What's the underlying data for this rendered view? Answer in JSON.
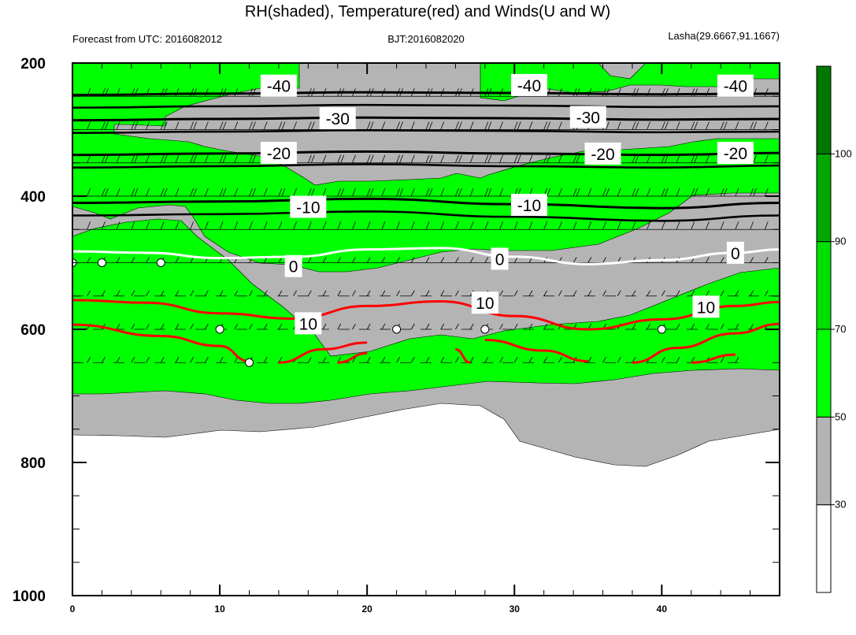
{
  "title": "RH(shaded), Temperature(red) and Winds(U and W)",
  "left_string": "Forecast from UTC: 2016082012",
  "center_string": "BJT:2016082020",
  "right_string": "Lasha(29.6667,91.1667)",
  "colors": {
    "rh_gray": "#b4b4b4",
    "rh_green_50": "#00ff00",
    "rh_green_70": "#00e000",
    "rh_green_90": "#00a800",
    "rh_green_100": "#007800",
    "temp_warm": "#ff0000",
    "temp_zero": "#ffffff",
    "temp_cold": "#000000"
  },
  "chart_data": {
    "type": "contour",
    "x": {
      "range": [
        0,
        48
      ],
      "ticks": [
        0,
        10,
        20,
        30,
        40
      ]
    },
    "y": {
      "range": [
        200,
        1000
      ],
      "ticks": [
        200,
        400,
        600,
        800,
        1000
      ],
      "reversed": true
    },
    "colorbar": {
      "levels": [
        30,
        50,
        70,
        90,
        100
      ],
      "colors": [
        "#ffffff",
        "#b4b4b4",
        "#00ff00",
        "#00e000",
        "#00a800",
        "#007800"
      ]
    },
    "temperature_contours": [
      {
        "level": -40,
        "label": "-40",
        "points": [
          [
            0,
            248
          ],
          [
            10,
            246
          ],
          [
            20,
            244
          ],
          [
            30,
            245
          ],
          [
            40,
            247
          ],
          [
            48,
            246
          ]
        ],
        "label_positions": [
          [
            14,
            234
          ],
          [
            31,
            233
          ],
          [
            45,
            234
          ]
        ]
      },
      {
        "level": -30,
        "label": "-30",
        "points": [
          [
            0,
            286
          ],
          [
            10,
            284
          ],
          [
            20,
            282
          ],
          [
            30,
            283
          ],
          [
            40,
            285
          ],
          [
            48,
            284
          ]
        ],
        "label_positions": [
          [
            18,
            283
          ],
          [
            35,
            281
          ]
        ]
      },
      {
        "level": -20,
        "label": "-20",
        "points": [
          [
            0,
            338
          ],
          [
            10,
            336
          ],
          [
            20,
            333
          ],
          [
            30,
            336
          ],
          [
            40,
            338
          ],
          [
            48,
            335
          ]
        ],
        "label_positions": [
          [
            14,
            335
          ],
          [
            36,
            336
          ],
          [
            45,
            335
          ]
        ]
      },
      {
        "level": -10,
        "label": "-10",
        "points": [
          [
            0,
            410
          ],
          [
            10,
            408
          ],
          [
            20,
            404
          ],
          [
            30,
            412
          ],
          [
            40,
            418
          ],
          [
            48,
            410
          ]
        ],
        "label_positions": [
          [
            16,
            416
          ],
          [
            31,
            413
          ]
        ]
      },
      {
        "level": 0,
        "label": "0",
        "points": [
          [
            0,
            483
          ],
          [
            5,
            485
          ],
          [
            10,
            493
          ],
          [
            15,
            491
          ],
          [
            20,
            480
          ],
          [
            25,
            478
          ],
          [
            30,
            491
          ],
          [
            35,
            502
          ],
          [
            40,
            496
          ],
          [
            45,
            485
          ],
          [
            48,
            480
          ]
        ],
        "label_positions": [
          [
            15,
            505
          ],
          [
            29,
            494
          ],
          [
            45,
            485
          ]
        ]
      },
      {
        "level": 10,
        "label": "10",
        "points": [
          [
            0,
            556
          ],
          [
            5,
            560
          ],
          [
            10,
            576
          ],
          [
            15,
            584
          ],
          [
            20,
            565
          ],
          [
            25,
            558
          ],
          [
            30,
            580
          ],
          [
            35,
            600
          ],
          [
            40,
            585
          ],
          [
            45,
            565
          ],
          [
            48,
            559
          ]
        ],
        "label_positions": [
          [
            16,
            591
          ],
          [
            28,
            560
          ],
          [
            43,
            566
          ]
        ]
      }
    ],
    "wind_levels_hPa": [
      200,
      250,
      300,
      350,
      400,
      450,
      500,
      550,
      600,
      650
    ],
    "calm_points": [
      [
        0,
        500
      ],
      [
        2,
        500
      ],
      [
        6,
        500
      ],
      [
        10,
        600
      ],
      [
        12,
        650
      ],
      [
        22,
        600
      ],
      [
        28,
        600
      ],
      [
        40,
        600
      ]
    ]
  }
}
